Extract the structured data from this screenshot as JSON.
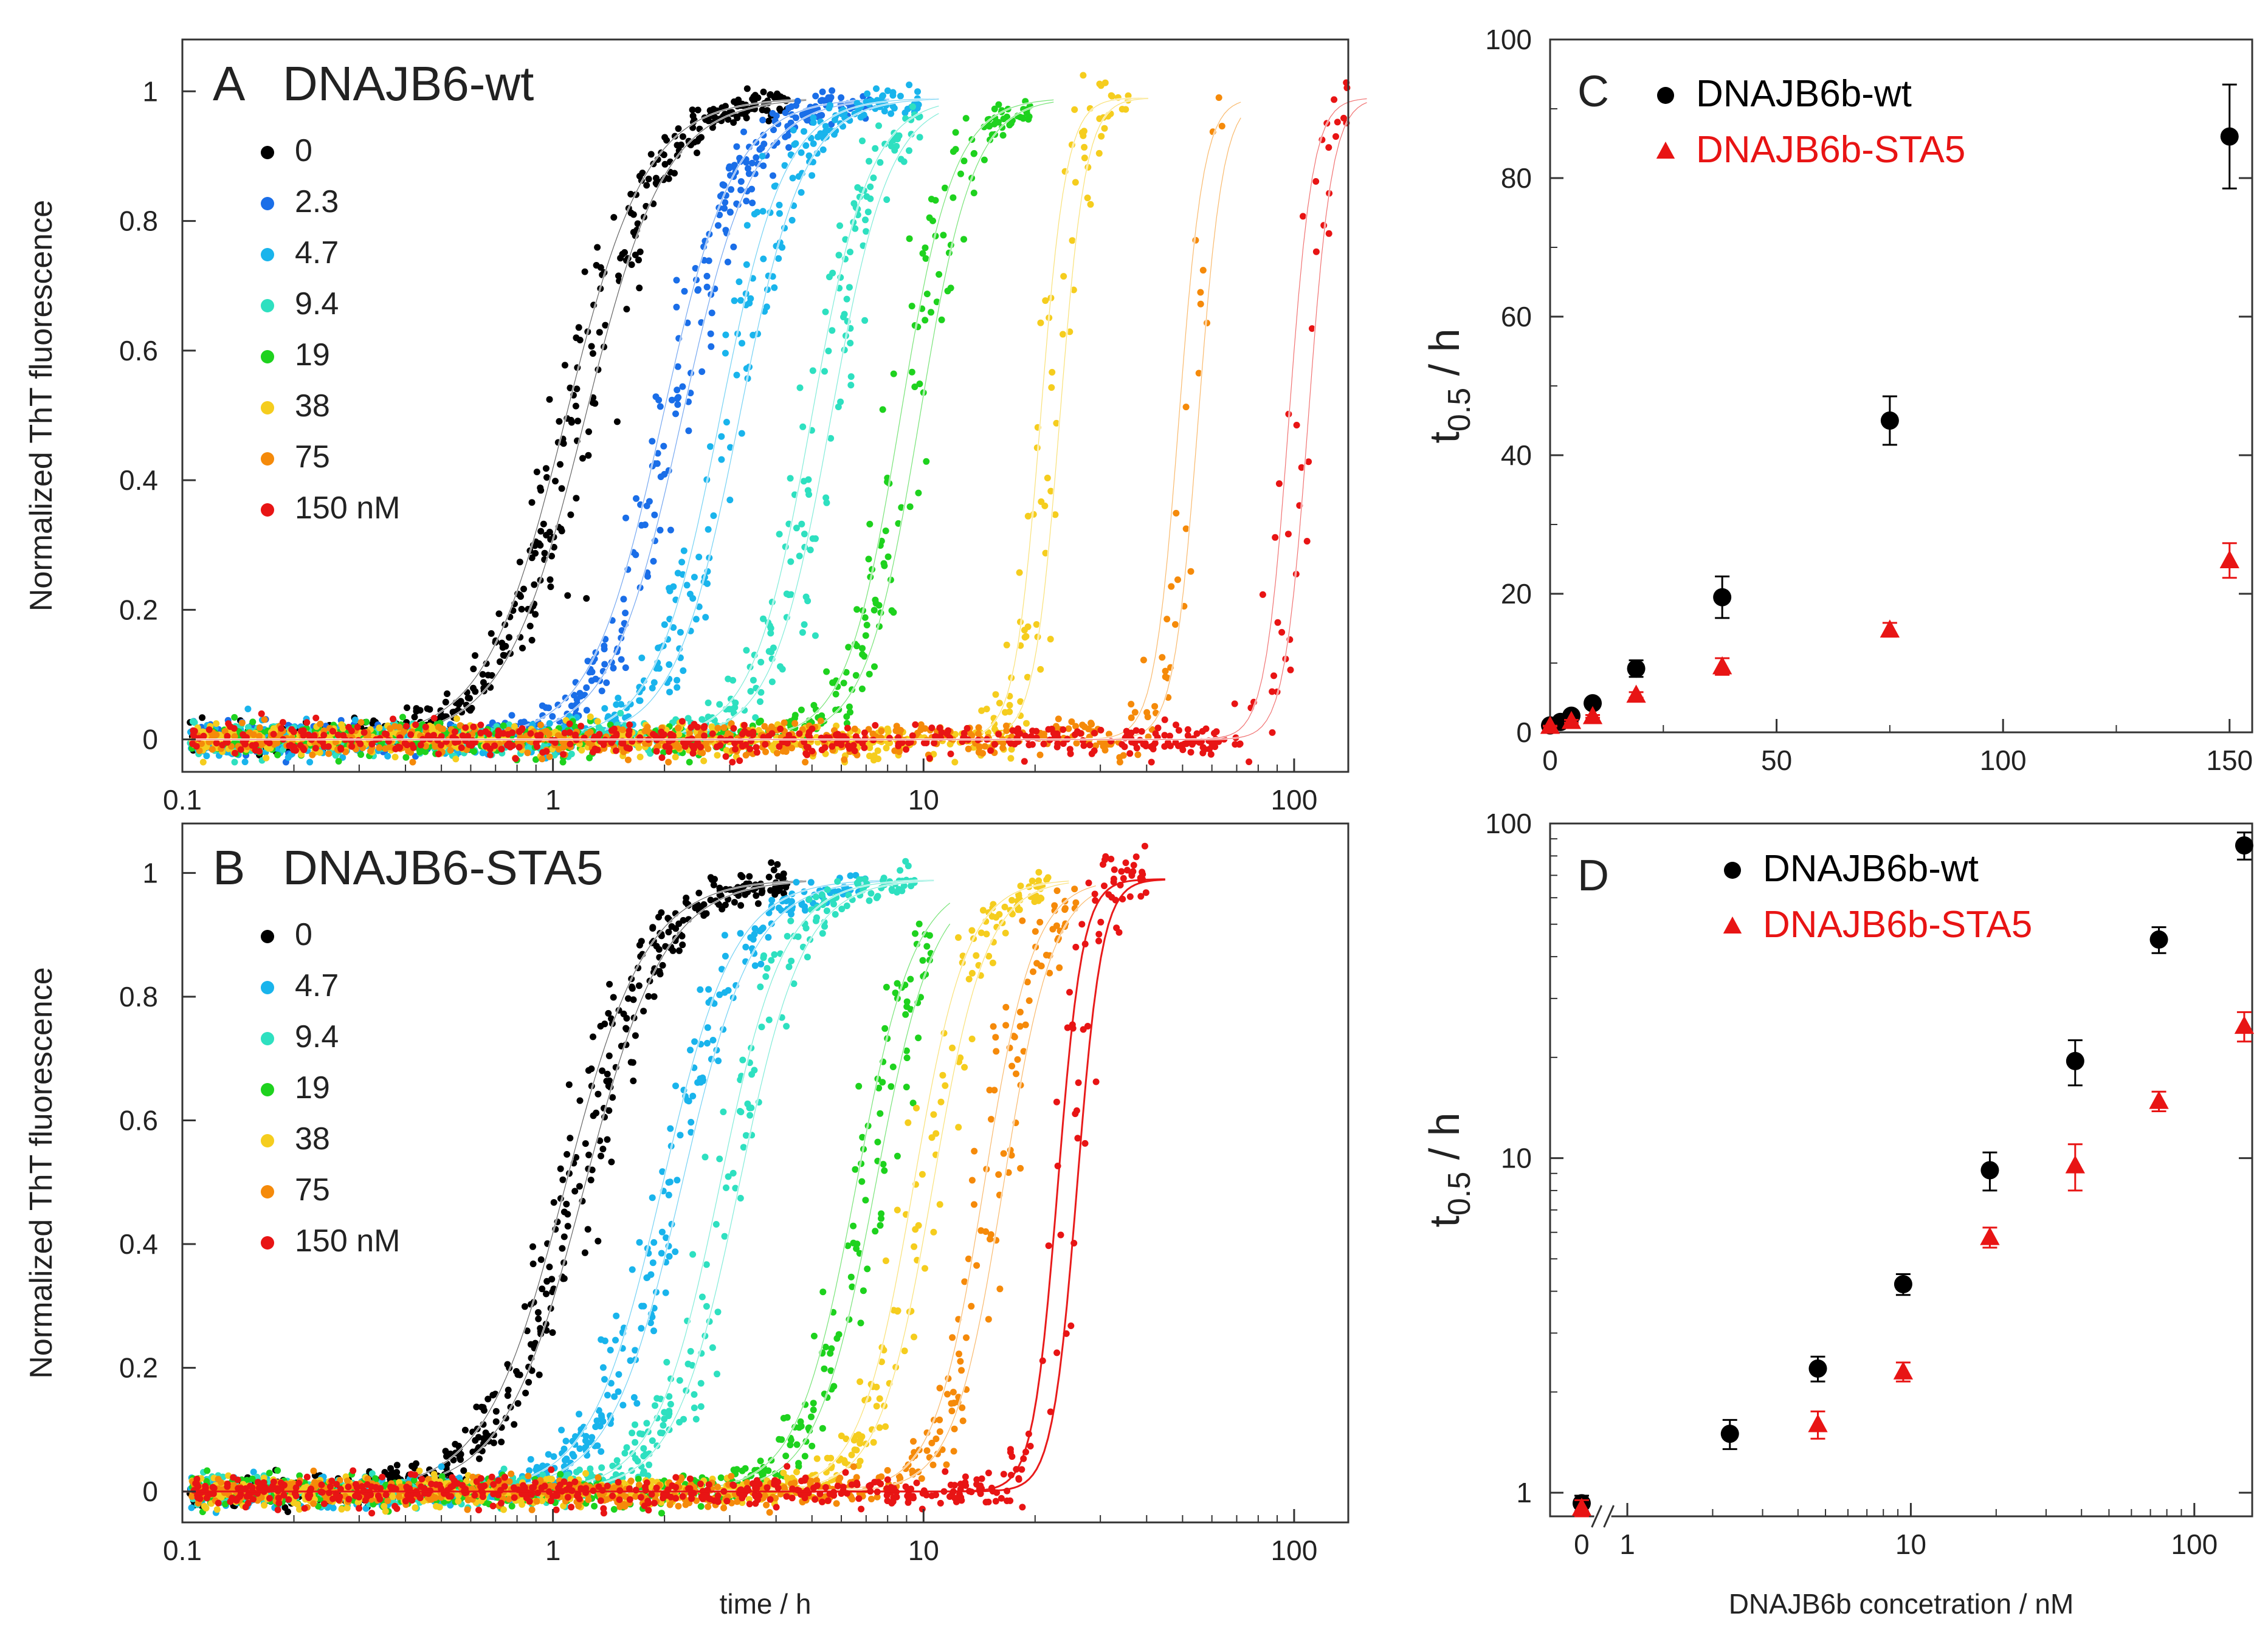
{
  "chart_data": [
    {
      "id": "A",
      "type": "scatter",
      "panel_letter": "A",
      "title": "DNAJB6-wt",
      "xscale": "log",
      "xlim": [
        0.1,
        140
      ],
      "ylim": [
        -0.05,
        1.08
      ],
      "xticks": [
        0.1,
        1,
        10,
        100
      ],
      "xtick_labels": [
        "0.1",
        "1",
        "10",
        "100"
      ],
      "yticks": [
        0,
        0.2,
        0.4,
        0.6,
        0.8,
        1
      ],
      "ytick_labels": [
        "0",
        "0.2",
        "0.4",
        "0.6",
        "0.8",
        "1"
      ],
      "xlabel": "",
      "ylabel": "Normalized ThT fluorescence",
      "legend_position": "top-left",
      "series": [
        {
          "name": "0",
          "color": "#000000",
          "t_half": 1.15,
          "xmax": 4.3,
          "fit_color": "#ffffff"
        },
        {
          "name": "2.3",
          "color": "#1a6ee8",
          "t_half": 2.1,
          "xmax": 7.2,
          "fit_color": "#ffffff"
        },
        {
          "name": "4.7",
          "color": "#19b4ec",
          "t_half": 3.0,
          "xmax": 9.8,
          "fit_color": "#ffffff"
        },
        {
          "name": "9.4",
          "color": "#2ee0c0",
          "t_half": 5.3,
          "xmax": 9.8,
          "fit_color": "#ffffff"
        },
        {
          "name": "19",
          "color": "#1ed21e",
          "t_half": 9.2,
          "xmax": 20.0,
          "fit_color": "#ffffff"
        },
        {
          "name": "38",
          "color": "#f5cd1e",
          "t_half": 22.0,
          "xmax": 36.0,
          "fit_color": "#ffffff"
        },
        {
          "name": "75",
          "color": "#f58a0a",
          "t_half": 52.0,
          "xmax": 64.0,
          "fit_color": "#ffffff"
        },
        {
          "name": "150 nM",
          "color": "#e81414",
          "t_half": 103.0,
          "xmax": 140.0,
          "fit_color": "#ffffff"
        }
      ]
    },
    {
      "id": "B",
      "type": "scatter",
      "panel_letter": "B",
      "title": "DNAJB6-STA5",
      "xscale": "log",
      "xlim": [
        0.1,
        140
      ],
      "ylim": [
        -0.05,
        1.08
      ],
      "xticks": [
        0.1,
        1,
        10,
        100
      ],
      "xtick_labels": [
        "0.1",
        "1",
        "10",
        "100"
      ],
      "yticks": [
        0,
        0.2,
        0.4,
        0.6,
        0.8,
        1
      ],
      "ytick_labels": [
        "0",
        "0.2",
        "0.4",
        "0.6",
        "0.8",
        "1"
      ],
      "xlabel": "time / h",
      "ylabel": "Normalized ThT fluorescence",
      "legend_position": "top-left",
      "series": [
        {
          "name": "0",
          "color": "#000000",
          "t_half": 1.15,
          "xmax": 4.3,
          "fit_color": "#ffffff"
        },
        {
          "name": "4.7",
          "color": "#19b4ec",
          "t_half": 2.1,
          "xmax": 7.0,
          "fit_color": "#ffffff"
        },
        {
          "name": "9.4",
          "color": "#2ee0c0",
          "t_half": 3.0,
          "xmax": 9.5,
          "fit_color": "#ffffff"
        },
        {
          "name": "19",
          "color": "#1ed21e",
          "t_half": 7.0,
          "xmax": 10.5,
          "fit_color": "#ffffff"
        },
        {
          "name": "38",
          "color": "#f5cd1e",
          "t_half": 10.0,
          "xmax": 22.0,
          "fit_color": "#ffffff"
        },
        {
          "name": "75",
          "color": "#f58a0a",
          "t_half": 15.5,
          "xmax": 26.0,
          "fit_color": "#ffffff"
        },
        {
          "name": "150 nM",
          "color": "#e81414",
          "t_half": 24.5,
          "xmax": 40.0,
          "fit_color": "#e81414"
        }
      ]
    },
    {
      "id": "C",
      "type": "scatter",
      "panel_letter": "C",
      "xscale": "linear",
      "yscale": "linear",
      "xlim": [
        0,
        155
      ],
      "ylim": [
        0,
        100
      ],
      "xticks": [
        0,
        50,
        100,
        150
      ],
      "xtick_labels": [
        "0",
        "50",
        "100",
        "150"
      ],
      "yticks": [
        0,
        20,
        40,
        60,
        80,
        100
      ],
      "ytick_labels": [
        "0",
        "20",
        "40",
        "60",
        "80",
        "100"
      ],
      "xlabel": "",
      "ylabel": "t 0.5 / h",
      "ylabel_parts": [
        "t",
        "0.5",
        " / h"
      ],
      "legend_position": "top",
      "series": [
        {
          "name": "DNAJB6b-wt",
          "marker": "circle",
          "color": "#000000",
          "x": [
            0,
            2.3,
            4.7,
            9.4,
            19,
            38,
            75,
            150
          ],
          "y": [
            1.0,
            1.5,
            2.4,
            4.2,
            9.2,
            19.5,
            45.0,
            86.0
          ],
          "err": [
            0.1,
            0.2,
            0.3,
            0.4,
            1.2,
            3.0,
            3.5,
            7.5
          ]
        },
        {
          "name": "DNAJB6b-STA5",
          "marker": "triangle",
          "color": "#e81414",
          "x": [
            0,
            4.7,
            9.4,
            19,
            38,
            75,
            150
          ],
          "y": [
            0.9,
            1.6,
            2.3,
            5.4,
            9.5,
            14.8,
            24.8
          ],
          "err": [
            0.05,
            0.2,
            0.2,
            0.4,
            1.2,
            1.0,
            2.5
          ]
        }
      ]
    },
    {
      "id": "D",
      "type": "scatter",
      "panel_letter": "D",
      "xscale": "log",
      "yscale": "log",
      "xlim": [
        0.6,
        160
      ],
      "ylim": [
        0.85,
        100
      ],
      "xticks": [
        1,
        10,
        100
      ],
      "xtick_labels": [
        "1",
        "10",
        "100"
      ],
      "x_break_label": "0",
      "yticks": [
        1,
        10,
        100
      ],
      "ytick_labels": [
        "1",
        "10",
        "100"
      ],
      "xlabel": "DNAJB6b concetration / nM",
      "ylabel": "t 0.5 / h",
      "ylabel_parts": [
        "t",
        "0.5",
        " / h"
      ],
      "legend_position": "top",
      "series": [
        {
          "name": "DNAJB6b-wt",
          "marker": "circle",
          "color": "#000000",
          "x": [
            0,
            2.3,
            4.7,
            9.4,
            19,
            38,
            75,
            150
          ],
          "y": [
            0.93,
            1.5,
            2.35,
            4.2,
            9.2,
            19.5,
            45.0,
            86.0
          ],
          "err": [
            0.05,
            0.15,
            0.2,
            0.3,
            1.2,
            3.0,
            4.0,
            8.0
          ]
        },
        {
          "name": "DNAJB6b-STA5",
          "marker": "triangle",
          "color": "#e81414",
          "x": [
            0,
            4.7,
            9.4,
            19,
            38,
            75,
            150
          ],
          "y": [
            0.9,
            1.6,
            2.3,
            5.8,
            9.5,
            14.8,
            24.8
          ],
          "err": [
            0.05,
            0.15,
            0.15,
            0.4,
            1.5,
            1.0,
            2.5
          ]
        }
      ]
    }
  ]
}
